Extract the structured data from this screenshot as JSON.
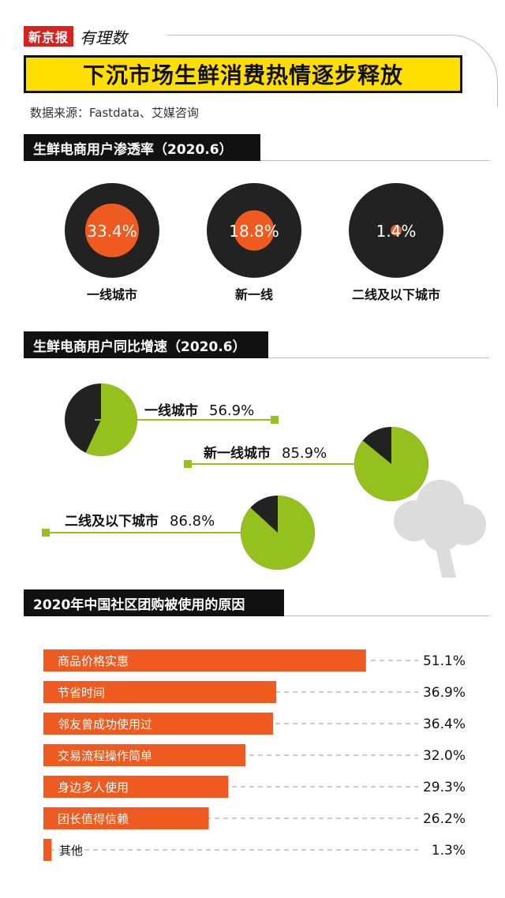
{
  "brand": {
    "name": "新京报",
    "sub": "有理数"
  },
  "title": "下沉市场生鲜消费热情逐步释放",
  "source": "数据来源：Fastdata、艾媒咨询",
  "chart_data": [
    {
      "type": "pie",
      "title": "生鲜电商用户渗透率（2020.6）",
      "categories": [
        "一线城市",
        "新一线",
        "二线及以下城市"
      ],
      "value_labels": [
        "33.4%",
        "18.8%",
        "1.4%"
      ],
      "values": [
        33.4,
        18.8,
        1.4
      ],
      "colors": {
        "value": "#ee5a1f",
        "background": "#222222",
        "text": "#ffffff"
      }
    },
    {
      "type": "pie",
      "title": "生鲜电商用户同比增速（2020.6）",
      "categories": [
        "一线城市",
        "新一线城市",
        "二线及以下城市"
      ],
      "value_labels": [
        "56.9%",
        "85.9%",
        "86.8%"
      ],
      "values": [
        56.9,
        85.9,
        86.8
      ],
      "colors": {
        "value": "#95c11f",
        "remainder": "#222222",
        "pointer": "#95c11f"
      }
    },
    {
      "type": "bar",
      "orientation": "horizontal",
      "title": "2020年中国社区团购被使用的原因",
      "categories": [
        "商品价格实惠",
        "节省时间",
        "邻友曾成功使用过",
        "交易流程操作简单",
        "身边多人使用",
        "团长值得信赖",
        "其他"
      ],
      "values": [
        51.1,
        36.9,
        36.4,
        32.0,
        29.3,
        26.2,
        1.3
      ],
      "value_labels": [
        "51.1%",
        "36.9%",
        "36.4%",
        "32.0%",
        "29.3%",
        "26.2%",
        "1.3%"
      ],
      "colors": {
        "bar": "#ee5a1f",
        "label": "#ffffff"
      }
    }
  ]
}
